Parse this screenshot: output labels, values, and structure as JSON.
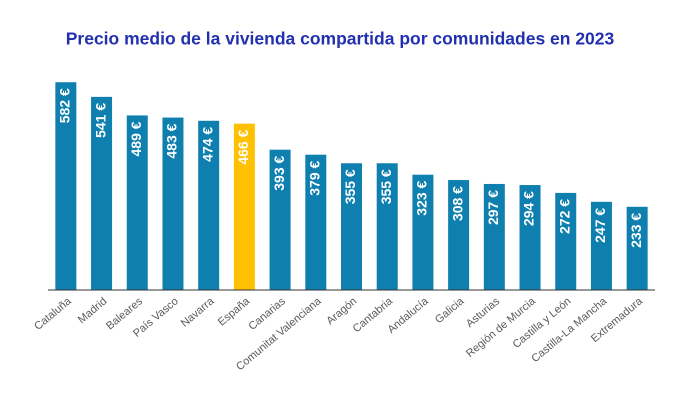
{
  "chart_data": {
    "type": "bar",
    "title": "Precio medio de la vivienda compartida por comunidades en 2023",
    "categories": [
      "Cataluña",
      "Madrid",
      "Baleares",
      "País Vasco",
      "Navarra",
      "España",
      "Canarias",
      "Comunitat Valenciana",
      "Aragón",
      "Cantabria",
      "Andalucía",
      "Galicia",
      "Asturias",
      "Región de Murcia",
      "Castilla y León",
      "Castilla-La Mancha",
      "Extremadura"
    ],
    "values": [
      582,
      541,
      489,
      483,
      474,
      466,
      393,
      379,
      355,
      355,
      323,
      308,
      297,
      294,
      272,
      247,
      233
    ],
    "value_labels": [
      "582 €",
      "541 €",
      "489 €",
      "483 €",
      "474 €",
      "466 €",
      "393 €",
      "379 €",
      "355 €",
      "355 €",
      "323 €",
      "308 €",
      "297 €",
      "294 €",
      "272 €",
      "247 €",
      "233 €"
    ],
    "colors": [
      "#0e7fae",
      "#0e7fae",
      "#0e7fae",
      "#0e7fae",
      "#0e7fae",
      "#ffc000",
      "#0e7fae",
      "#0e7fae",
      "#0e7fae",
      "#0e7fae",
      "#0e7fae",
      "#0e7fae",
      "#0e7fae",
      "#0e7fae",
      "#0e7fae",
      "#0e7fae",
      "#0e7fae"
    ]
  }
}
